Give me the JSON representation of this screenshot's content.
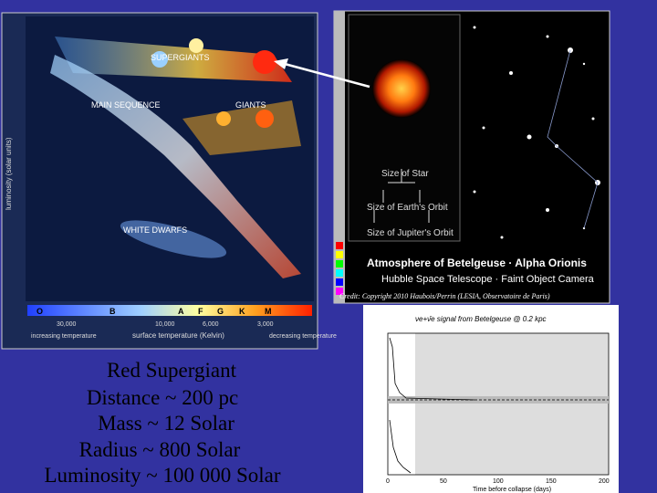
{
  "hr_diagram": {
    "y_axis_label": "luminosity (solar units)",
    "regions": [
      "SUPERGIANTS",
      "GIANTS",
      "MAIN SEQUENCE",
      "WHITE DWARFS"
    ],
    "spectral_classes": [
      "O",
      "B",
      "A",
      "F",
      "G",
      "K",
      "M"
    ],
    "temperatures": [
      "30,000",
      "10,000",
      "6,000",
      "3,000"
    ],
    "x_axis_label": "surface temperature (Kelvin)",
    "left_note": "increasing temperature",
    "right_note": "decreasing temperature"
  },
  "hubble_image": {
    "scale_labels": [
      "Size of Star",
      "Size of Earth's Orbit",
      "Size of Jupiter's Orbit"
    ],
    "title": "Atmosphere of Betelgeuse · Alpha Orionis",
    "subtitle": "Hubble Space Telescope · Faint Object Camera",
    "credit": "Credit: Copyright 2010 Haubois/Perrin (LESIA, Observatoire de Paris)"
  },
  "neutrino_plot": {
    "title": "νe+ν̄e signal from Betelgeuse @ 0.2 kpc",
    "x_label": "Time before collapse (days)",
    "x_ticks": [
      "0",
      "50",
      "100",
      "150",
      "200"
    ]
  },
  "slide": {
    "lines": [
      "Red Supergiant",
      "Distance ~ 200 pc",
      "Mass ~ 12 Solar",
      "Radius ~ 800 Solar",
      "Luminosity ~ 100 000 Solar"
    ]
  }
}
